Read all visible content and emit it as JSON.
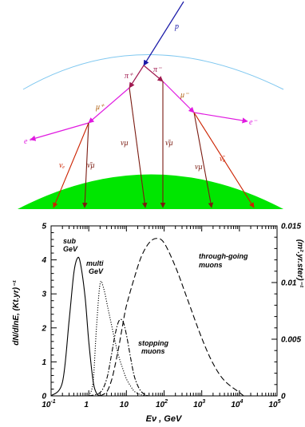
{
  "diagram": {
    "particles": {
      "proton": "p",
      "pion_plus": "π⁺",
      "pion_minus": "π⁻",
      "muon_plus": "μ⁺",
      "muon_minus": "μ⁻",
      "electron_plus": "e⁺",
      "electron_minus": "e⁻",
      "nu_e": "νₑ",
      "nu_mu_bar_left": "ν̄μ",
      "nu_mu_mid": "νμ",
      "nu_mu_bar_mid": "ν̄μ",
      "nu_mu_right": "νμ",
      "nu_e_bar": "ν̄ₑ"
    },
    "colors": {
      "proton": "#1a1aa8",
      "pion": "#a01a50",
      "muon": "#b06010",
      "electron": "#e01ae0",
      "neutrino": "#cc2200",
      "neutrino_bar": "#7a1a10",
      "atmosphere": "#80c8f0",
      "earth": "#00e600"
    }
  },
  "chart": {
    "ylabel_left": "dN/dlnE, (Kt.yr)⁻¹",
    "ylabel_right": "(m².yr.ster)⁻¹",
    "xlabel": "Eν , GeV",
    "left_ticks": [
      "0",
      "1",
      "2",
      "3",
      "4",
      "5"
    ],
    "right_ticks": [
      "0",
      "0.005",
      "0.01",
      "0.015"
    ],
    "x_ticks": [
      {
        "base": "10",
        "exp": "-1"
      },
      {
        "base": "1",
        "exp": ""
      },
      {
        "base": "10",
        "exp": ""
      },
      {
        "base": "10",
        "exp": "2"
      },
      {
        "base": "10",
        "exp": "3"
      },
      {
        "base": "10",
        "exp": "4"
      },
      {
        "base": "10",
        "exp": "5"
      }
    ],
    "annotations": {
      "sub1": "sub",
      "sub2": "GeV",
      "multi1": "multi",
      "multi2": "GeV",
      "stop1": "stopping",
      "stop2": "muons",
      "through1": "through-going",
      "through2": "muons"
    }
  },
  "chart_data": {
    "type": "line",
    "xlabel": "Eν , GeV",
    "ylabel": "dN/dlnE, (Kt.yr)⁻¹",
    "y2label": "(m².yr.ster)⁻¹",
    "x_scale": "log",
    "xlim": [
      0.1,
      100000
    ],
    "ylim": [
      0,
      5
    ],
    "y2lim": [
      0,
      0.015
    ],
    "series": [
      {
        "name": "sub GeV",
        "style": "solid",
        "axis": "left",
        "x": [
          0.1,
          0.2,
          0.3,
          0.4,
          0.5,
          0.6,
          0.8,
          1.0,
          1.3,
          1.6,
          2.0
        ],
        "y": [
          0.0,
          0.4,
          2.2,
          3.6,
          4.05,
          3.9,
          2.9,
          1.6,
          0.45,
          0.08,
          0.0
        ]
      },
      {
        "name": "multi GeV",
        "style": "dotted",
        "axis": "left",
        "x": [
          1.0,
          1.3,
          1.6,
          2.0,
          2.5,
          3.2,
          4.0,
          5.0,
          6.3,
          8.0,
          10,
          13,
          16,
          20,
          25,
          30,
          40
        ],
        "y": [
          0.0,
          0.4,
          2.0,
          3.3,
          3.15,
          2.6,
          2.1,
          1.6,
          1.15,
          0.8,
          0.5,
          0.28,
          0.14,
          0.07,
          0.03,
          0.01,
          0.0
        ]
      },
      {
        "name": "stopping muons",
        "style": "dashdot",
        "axis": "left",
        "x": [
          1.0,
          2.0,
          3.0,
          4.0,
          5.0,
          6.3,
          8.0,
          10,
          13,
          16,
          20,
          25,
          32,
          40
        ],
        "y": [
          0.0,
          0.1,
          0.5,
          1.2,
          1.8,
          2.2,
          2.2,
          1.8,
          1.1,
          0.6,
          0.3,
          0.12,
          0.03,
          0.0
        ]
      },
      {
        "name": "through-going muons",
        "style": "dashed",
        "axis": "left",
        "x": [
          2,
          3,
          4,
          5,
          6.3,
          8,
          10,
          16,
          25,
          40,
          63,
          100,
          200,
          400,
          1000,
          2000,
          4000,
          10000,
          13000
        ],
        "y": [
          0.0,
          0.12,
          0.45,
          0.9,
          1.45,
          2.1,
          2.65,
          3.45,
          4.1,
          4.5,
          4.63,
          4.5,
          3.8,
          2.9,
          1.7,
          0.95,
          0.45,
          0.1,
          0.0
        ]
      }
    ]
  }
}
